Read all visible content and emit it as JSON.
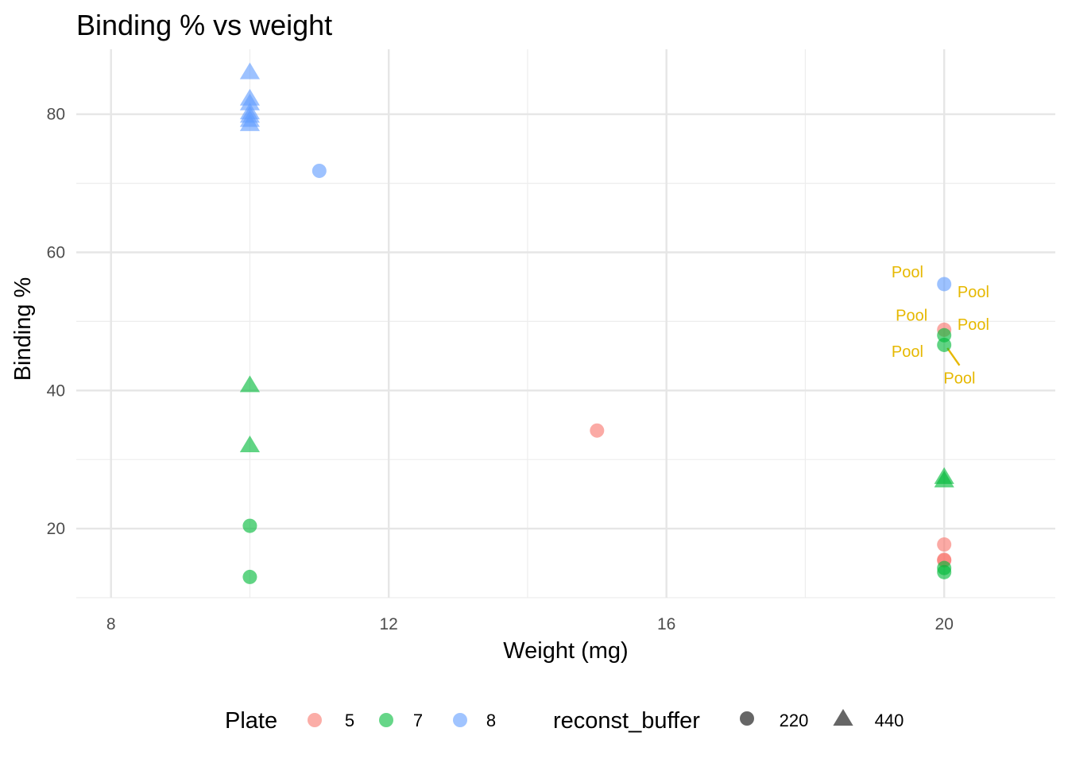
{
  "chart_data": {
    "type": "scatter",
    "title": "Binding % vs weight",
    "xlabel": "Weight (mg)",
    "ylabel": "Binding %",
    "xlim": [
      7.5,
      21.6
    ],
    "ylim": [
      10,
      89.4
    ],
    "x_ticks": [
      8,
      12,
      16,
      20
    ],
    "y_ticks": [
      20,
      40,
      60,
      80
    ],
    "x_tick_labels": [
      "8",
      "12",
      "16",
      "20"
    ],
    "y_tick_labels": [
      "20",
      "40",
      "60",
      "80"
    ],
    "grid": true,
    "legend_position": "bottom",
    "legend": {
      "color_title": "Plate",
      "color_entries": [
        {
          "label": "5",
          "color": "#F8766D"
        },
        {
          "label": "7",
          "color": "#00BA38"
        },
        {
          "label": "8",
          "color": "#619CFF"
        }
      ],
      "shape_title": "reconst_buffer",
      "shape_entries": [
        {
          "label": "220",
          "shape": "circle"
        },
        {
          "label": "440",
          "shape": "triangle"
        }
      ]
    },
    "series": [
      {
        "plate": "5",
        "reconst_buffer": "220",
        "color": "#F8766D",
        "shape": "circle",
        "x": [
          15,
          20,
          20,
          20,
          20
        ],
        "y": [
          34.2,
          48.8,
          17.7,
          15.5,
          15.4
        ]
      },
      {
        "plate": "7",
        "reconst_buffer": "220",
        "color": "#00BA38",
        "shape": "circle",
        "x": [
          10,
          10,
          20,
          20,
          20,
          20
        ],
        "y": [
          20.4,
          13,
          48,
          46.6,
          14.3,
          13.7
        ]
      },
      {
        "plate": "7",
        "reconst_buffer": "440",
        "color": "#00BA38",
        "shape": "triangle",
        "x": [
          10,
          10,
          20,
          20
        ],
        "y": [
          40.8,
          32.1,
          27.5,
          27
        ]
      },
      {
        "plate": "8",
        "reconst_buffer": "220",
        "color": "#619CFF",
        "shape": "circle",
        "x": [
          11,
          20
        ],
        "y": [
          71.8,
          55.4
        ]
      },
      {
        "plate": "8",
        "reconst_buffer": "440",
        "color": "#619CFF",
        "shape": "triangle",
        "x": [
          10,
          10,
          10,
          10,
          10,
          10,
          10
        ],
        "y": [
          86.1,
          82.3,
          81.6,
          80.3,
          79.8,
          79.2,
          78.6
        ]
      }
    ],
    "annotations": [
      {
        "text": "Pool",
        "x": 19.47,
        "y": 57.2,
        "color": "#E6B800"
      },
      {
        "text": "Pool",
        "x": 20.42,
        "y": 54.3,
        "color": "#E6B800"
      },
      {
        "text": "Pool",
        "x": 19.53,
        "y": 50.9,
        "color": "#E6B800"
      },
      {
        "text": "Pool",
        "x": 20.42,
        "y": 49.6,
        "color": "#E6B800"
      },
      {
        "text": "Pool",
        "x": 19.47,
        "y": 45.7,
        "color": "#E6B800"
      },
      {
        "text": "Pool",
        "x": 20.22,
        "y": 41.8,
        "color": "#E6B800",
        "segment_to": [
          20,
          46.6
        ]
      }
    ]
  }
}
